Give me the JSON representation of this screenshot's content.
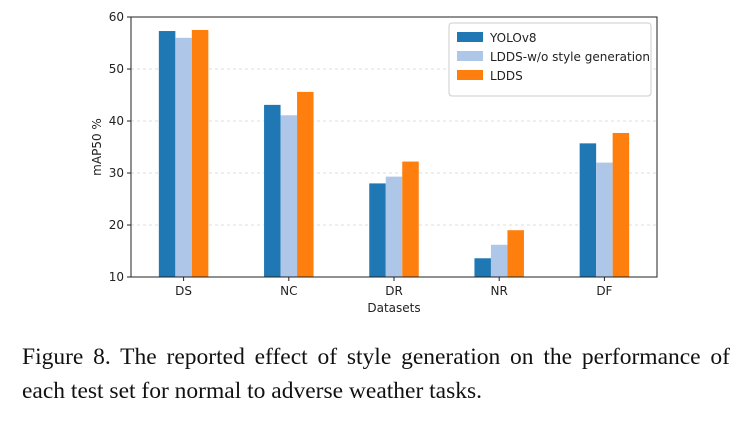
{
  "chart_data": {
    "type": "bar",
    "title": "",
    "xlabel": "Datasets",
    "ylabel": "mAP50 %",
    "ylim": [
      10,
      60
    ],
    "yticks": [
      10,
      20,
      30,
      40,
      50,
      60
    ],
    "grid": "horizontal dashed",
    "legend_position": "top-right",
    "categories": [
      "DS",
      "NC",
      "DR",
      "NR",
      "DF"
    ],
    "series": [
      {
        "name": "YOLOv8",
        "color": "#1f77b4",
        "values": [
          57.3,
          43.1,
          28.0,
          13.6,
          35.7
        ]
      },
      {
        "name": "LDDS-w/o style generation",
        "color": "#aec7e8",
        "values": [
          56.0,
          41.1,
          29.3,
          16.2,
          32.0
        ]
      },
      {
        "name": "LDDS",
        "color": "#ff7f0e",
        "values": [
          57.5,
          45.6,
          32.2,
          19.0,
          37.7
        ]
      }
    ]
  },
  "caption": {
    "text": "Figure 8.  The reported effect of style generation on the performance of each test set for normal to adverse weather tasks."
  }
}
